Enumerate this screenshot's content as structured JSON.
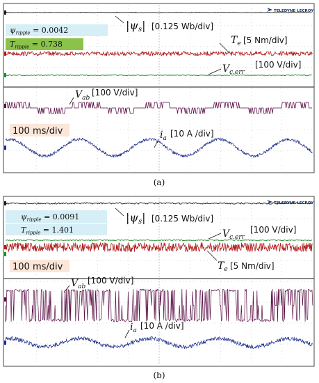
{
  "brand": "TELEDYNE LECROY",
  "colors": {
    "flux": "#1a1a1a",
    "torque": "#b01818",
    "vc_err": "#1f8a2a",
    "vab": "#5a0f45",
    "current": "#1b2a8a",
    "box_psi": "#d6eef5",
    "box_t_a": "#8bc34a",
    "box_t_b": "#d6eef5",
    "box_time": "#fbe6d8",
    "grid": "#9a9a9a"
  },
  "chart_data": [
    {
      "type": "line",
      "panel_label": "(a)",
      "time_div": "100 ms/div",
      "grid": true,
      "annotations": {
        "psi_ripple": "0.0042",
        "t_ripple": "0.738"
      },
      "channels": [
        {
          "id": "flux",
          "label": "|ψs|",
          "scale": "[0.125 Wb/div]",
          "behavior": "flat",
          "noise": 0.6
        },
        {
          "id": "torque",
          "label": "Te",
          "scale": "[5 Nm/div]",
          "behavior": "noisy-flat",
          "noise": 3.0
        },
        {
          "id": "vc_err",
          "label": "Vc.err",
          "scale": "[100 V/div]",
          "behavior": "flat",
          "noise": 0.5
        },
        {
          "id": "vab",
          "label": "Vab",
          "scale": "[100 V/div]",
          "behavior": "pwm-bursts"
        },
        {
          "id": "current",
          "label": "ia",
          "scale": "[10 A /div]",
          "behavior": "sinusoid",
          "cycles_on_screen": 4.4,
          "noise": 2.2
        }
      ]
    },
    {
      "type": "line",
      "panel_label": "(b)",
      "time_div": "100 ms/div",
      "grid": true,
      "annotations": {
        "psi_ripple": "0.0091",
        "t_ripple": "1.401"
      },
      "channels": [
        {
          "id": "flux",
          "label": "|ψs|",
          "scale": "[0.125 Wb/div]",
          "behavior": "flat",
          "noise": 1.2
        },
        {
          "id": "vc_err",
          "label": "Vc.err",
          "scale": "[100 V/div]",
          "behavior": "flat",
          "noise": 0.8
        },
        {
          "id": "torque",
          "label": "Te",
          "scale": "[5 Nm/div]",
          "behavior": "noisy-flat",
          "noise": 6.5
        },
        {
          "id": "vab",
          "label": "Vab",
          "scale": "[100 V/div]",
          "behavior": "dense-pwm"
        },
        {
          "id": "current",
          "label": "ia",
          "scale": "[10 A /div]",
          "behavior": "sinusoid",
          "cycles_on_screen": 4.4,
          "noise": 3.0
        }
      ]
    }
  ]
}
